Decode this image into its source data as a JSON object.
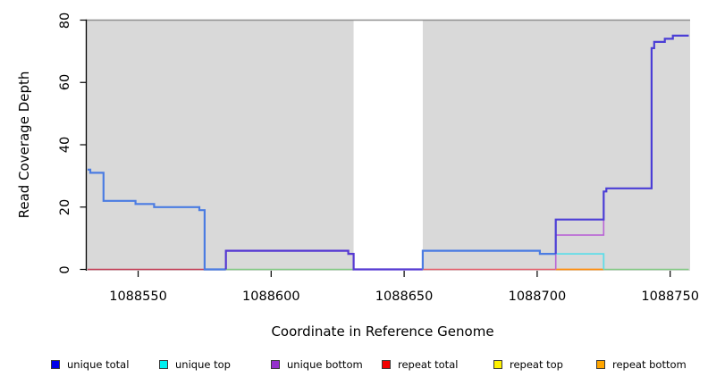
{
  "chart_data": {
    "type": "line",
    "subtype": "step",
    "title": "",
    "xlabel": "Coordinate in Reference Genome",
    "ylabel": "Read Coverage Depth",
    "xlim": [
      1088530.5,
      1088757.5
    ],
    "ylim": [
      0,
      80
    ],
    "grid": false,
    "x_ticks": {
      "values": [
        1088550,
        1088600,
        1088650,
        1088700,
        1088750
      ],
      "labels": [
        "1088550",
        "1088600",
        "1088650",
        "1088700",
        "1088750"
      ]
    },
    "y_ticks": {
      "values": [
        0,
        20,
        40,
        60,
        80
      ],
      "labels": [
        "0",
        "20",
        "40",
        "60",
        "80"
      ]
    },
    "panel_background": "#d9d9d9",
    "panel_top_edge": "#8f8f8f",
    "gap_band": {
      "x1": 1088631,
      "x2": 1088657,
      "color": "#ffffff"
    },
    "legend": {
      "position": "bottom",
      "entries": [
        {
          "label": "unique total",
          "color": "#0000e8"
        },
        {
          "label": "unique top",
          "color": "#00f0f0"
        },
        {
          "label": "unique bottom",
          "color": "#9530cc"
        },
        {
          "label": "repeat total",
          "color": "#f20000"
        },
        {
          "label": "repeat top",
          "color": "#fff200"
        },
        {
          "label": "repeat bottom",
          "color": "#ffa500"
        }
      ]
    },
    "series": [
      {
        "name": "unique total",
        "color": "#0000e8",
        "steps": [
          [
            1088531,
            32
          ],
          [
            1088532,
            31
          ],
          [
            1088537,
            22
          ],
          [
            1088549,
            21
          ],
          [
            1088556,
            20
          ],
          [
            1088573,
            19
          ],
          [
            1088575,
            0
          ],
          [
            1088583,
            6
          ],
          [
            1088629,
            5
          ],
          [
            1088631,
            0
          ],
          [
            1088657,
            6
          ],
          [
            1088701,
            5
          ],
          [
            1088707,
            16
          ],
          [
            1088725,
            25
          ],
          [
            1088726,
            26
          ],
          [
            1088743,
            71
          ],
          [
            1088744,
            73
          ],
          [
            1088748,
            74
          ],
          [
            1088751,
            75
          ],
          [
            1088757,
            75
          ]
        ]
      },
      {
        "name": "unique top",
        "color": "#00f0f0",
        "steps": [
          [
            1088531,
            32
          ],
          [
            1088532,
            31
          ],
          [
            1088537,
            22
          ],
          [
            1088549,
            21
          ],
          [
            1088556,
            20
          ],
          [
            1088573,
            19
          ],
          [
            1088575,
            0
          ],
          [
            1088657,
            6
          ],
          [
            1088701,
            5
          ],
          [
            1088707,
            5
          ],
          [
            1088725,
            0
          ],
          [
            1088757,
            0
          ]
        ]
      },
      {
        "name": "unique bottom",
        "color": "#9530cc",
        "steps": [
          [
            1088531,
            0
          ],
          [
            1088583,
            6
          ],
          [
            1088629,
            5
          ],
          [
            1088631,
            0
          ],
          [
            1088707,
            11
          ],
          [
            1088725,
            25
          ],
          [
            1088726,
            26
          ],
          [
            1088743,
            71
          ],
          [
            1088744,
            73
          ],
          [
            1088748,
            74
          ],
          [
            1088751,
            75
          ],
          [
            1088757,
            75
          ]
        ]
      },
      {
        "name": "repeat total",
        "color": "#f20000",
        "steps": [
          [
            1088531,
            0
          ],
          [
            1088757,
            0
          ]
        ]
      },
      {
        "name": "repeat top",
        "color": "#fff200",
        "steps": [
          [
            1088531,
            0
          ],
          [
            1088757,
            0
          ]
        ]
      },
      {
        "name": "repeat bottom",
        "color": "#ffa500",
        "steps": [
          [
            1088531,
            0
          ],
          [
            1088757,
            0
          ]
        ]
      }
    ],
    "visible_paths": [
      {
        "name": "baseline-red-left",
        "color": "#c43d55",
        "width": 1.6,
        "pts": [
          [
            1088531,
            0
          ],
          [
            1088575,
            0
          ]
        ]
      },
      {
        "name": "baseline-green-mid",
        "color": "#82ca84",
        "width": 1.6,
        "pts": [
          [
            1088583,
            0
          ],
          [
            1088631,
            0
          ]
        ]
      },
      {
        "name": "baseline-red-right",
        "color": "#e55f6b",
        "width": 1.6,
        "pts": [
          [
            1088657,
            0
          ],
          [
            1088707,
            0
          ]
        ]
      },
      {
        "name": "baseline-orange",
        "color": "#ff8d0a",
        "width": 1.8,
        "pts": [
          [
            1088707,
            0
          ],
          [
            1088725,
            0
          ]
        ]
      },
      {
        "name": "baseline-green-right",
        "color": "#82ca84",
        "width": 1.6,
        "pts": [
          [
            1088725,
            0
          ],
          [
            1088757,
            0
          ]
        ]
      },
      {
        "name": "unique-top-cyan",
        "color": "#5fdde8",
        "width": 1.8,
        "pts": [
          [
            1088707,
            5
          ],
          [
            1088725,
            5
          ],
          [
            1088725,
            0
          ]
        ]
      },
      {
        "name": "unique-bottom-orchid",
        "color": "#b964d6",
        "width": 1.6,
        "pts": [
          [
            1088707,
            0
          ],
          [
            1088707,
            11
          ],
          [
            1088725,
            11
          ],
          [
            1088725,
            25
          ]
        ]
      },
      {
        "name": "total-left-cornflower",
        "color": "#4b7ce2",
        "width": 2.2,
        "pts": [
          [
            1088531,
            32
          ],
          [
            1088532,
            32
          ],
          [
            1088532,
            31
          ],
          [
            1088537,
            31
          ],
          [
            1088537,
            22
          ],
          [
            1088549,
            22
          ],
          [
            1088549,
            21
          ],
          [
            1088556,
            21
          ],
          [
            1088556,
            20
          ],
          [
            1088573,
            20
          ],
          [
            1088573,
            19
          ],
          [
            1088575,
            19
          ],
          [
            1088575,
            0
          ],
          [
            1088583,
            0
          ]
        ]
      },
      {
        "name": "total-mid-violet",
        "color": "#5639d2",
        "width": 2.2,
        "pts": [
          [
            1088583,
            0
          ],
          [
            1088583,
            6
          ],
          [
            1088629,
            6
          ],
          [
            1088629,
            5
          ],
          [
            1088631,
            5
          ],
          [
            1088631,
            0
          ],
          [
            1088657,
            0
          ]
        ]
      },
      {
        "name": "total-right-cornflower",
        "color": "#4b7ce2",
        "width": 2.2,
        "pts": [
          [
            1088657,
            0
          ],
          [
            1088657,
            6
          ],
          [
            1088701,
            6
          ],
          [
            1088701,
            5
          ],
          [
            1088707,
            5
          ]
        ]
      },
      {
        "name": "total-right-violet",
        "color": "#4b3ed6",
        "width": 2.2,
        "pts": [
          [
            1088707,
            5
          ],
          [
            1088707,
            16
          ],
          [
            1088725,
            16
          ],
          [
            1088725,
            25
          ],
          [
            1088726,
            25
          ],
          [
            1088726,
            26
          ],
          [
            1088743,
            26
          ],
          [
            1088743,
            71
          ],
          [
            1088744,
            71
          ],
          [
            1088744,
            73
          ],
          [
            1088748,
            73
          ],
          [
            1088748,
            74
          ],
          [
            1088751,
            74
          ],
          [
            1088751,
            75
          ],
          [
            1088757,
            75
          ]
        ]
      }
    ]
  }
}
